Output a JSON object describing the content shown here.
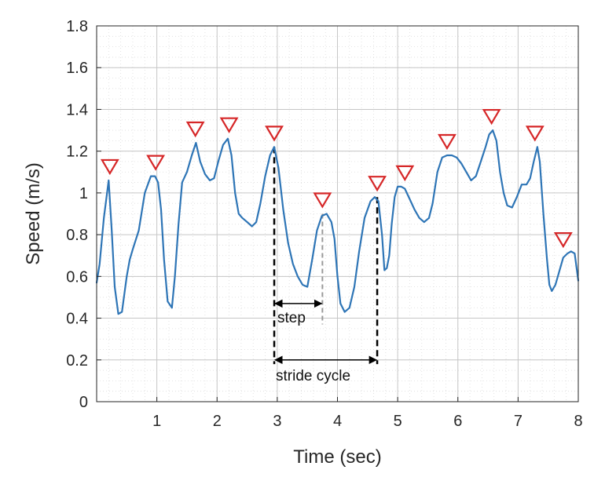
{
  "chart_data": {
    "type": "line",
    "title": "",
    "xlabel": "Time (sec)",
    "ylabel": "Speed (m/s)",
    "xlim": [
      0,
      8
    ],
    "ylim": [
      0,
      1.8
    ],
    "xticks": [
      1,
      2,
      3,
      4,
      5,
      6,
      7,
      8
    ],
    "yticks": [
      0,
      0.2,
      0.4,
      0.6,
      0.8,
      1,
      1.2,
      1.4,
      1.6,
      1.8
    ],
    "grid": true,
    "colors": {
      "line": "#2E75B6",
      "peak_marker": "#D62728",
      "annotation": "#000000",
      "step_end_line": "#999999"
    },
    "series": [
      {
        "name": "Speed",
        "x": [
          0,
          0.05,
          0.12,
          0.2,
          0.25,
          0.3,
          0.36,
          0.42,
          0.5,
          0.55,
          0.6,
          0.7,
          0.8,
          0.9,
          0.97,
          1.02,
          1.07,
          1.12,
          1.18,
          1.25,
          1.3,
          1.36,
          1.42,
          1.5,
          1.58,
          1.65,
          1.72,
          1.8,
          1.88,
          1.95,
          2.02,
          2.1,
          2.18,
          2.24,
          2.3,
          2.36,
          2.42,
          2.5,
          2.58,
          2.65,
          2.72,
          2.8,
          2.88,
          2.95,
          3.02,
          3.1,
          3.18,
          3.26,
          3.34,
          3.42,
          3.5,
          3.58,
          3.66,
          3.74,
          3.82,
          3.9,
          3.95,
          4.0,
          4.05,
          4.12,
          4.2,
          4.28,
          4.36,
          4.45,
          4.55,
          4.62,
          4.68,
          4.74,
          4.78,
          4.82,
          4.86,
          4.9,
          4.95,
          5.0,
          5.06,
          5.12,
          5.2,
          5.28,
          5.36,
          5.44,
          5.52,
          5.58,
          5.66,
          5.74,
          5.82,
          5.9,
          5.98,
          6.06,
          6.14,
          6.22,
          6.3,
          6.38,
          6.46,
          6.52,
          6.58,
          6.64,
          6.7,
          6.76,
          6.82,
          6.9,
          6.98,
          7.06,
          7.14,
          7.2,
          7.26,
          7.32,
          7.36,
          7.42,
          7.48,
          7.52,
          7.56,
          7.62,
          7.68,
          7.75,
          7.82,
          7.88,
          7.94,
          8.0
        ],
        "y": [
          0.57,
          0.66,
          0.88,
          1.06,
          0.82,
          0.55,
          0.42,
          0.43,
          0.6,
          0.68,
          0.73,
          0.82,
          1.0,
          1.08,
          1.08,
          1.05,
          0.92,
          0.68,
          0.48,
          0.45,
          0.6,
          0.85,
          1.05,
          1.1,
          1.18,
          1.24,
          1.15,
          1.09,
          1.06,
          1.07,
          1.15,
          1.23,
          1.26,
          1.18,
          1.0,
          0.9,
          0.88,
          0.86,
          0.84,
          0.86,
          0.95,
          1.08,
          1.18,
          1.22,
          1.12,
          0.92,
          0.76,
          0.66,
          0.6,
          0.56,
          0.55,
          0.68,
          0.82,
          0.89,
          0.9,
          0.86,
          0.78,
          0.6,
          0.47,
          0.43,
          0.45,
          0.55,
          0.72,
          0.88,
          0.96,
          0.98,
          0.96,
          0.8,
          0.63,
          0.64,
          0.7,
          0.85,
          0.98,
          1.03,
          1.03,
          1.02,
          0.97,
          0.92,
          0.88,
          0.86,
          0.88,
          0.95,
          1.1,
          1.17,
          1.18,
          1.18,
          1.17,
          1.14,
          1.1,
          1.06,
          1.08,
          1.15,
          1.22,
          1.28,
          1.3,
          1.25,
          1.1,
          1.0,
          0.94,
          0.93,
          0.98,
          1.04,
          1.04,
          1.07,
          1.15,
          1.22,
          1.15,
          0.9,
          0.68,
          0.56,
          0.53,
          0.56,
          0.62,
          0.69,
          0.71,
          0.72,
          0.71,
          0.58
        ]
      }
    ],
    "peaks": {
      "x": [
        0.22,
        0.98,
        1.64,
        2.2,
        2.95,
        3.75,
        4.66,
        5.12,
        5.82,
        6.56,
        7.28,
        7.75
      ],
      "y": [
        1.06,
        1.08,
        1.24,
        1.26,
        1.22,
        0.9,
        0.98,
        1.03,
        1.18,
        1.3,
        1.22,
        0.71
      ]
    },
    "annotations": {
      "step": {
        "label": "step",
        "x_start": 2.95,
        "x_end": 3.75
      },
      "stride": {
        "label": "stride cycle",
        "x_start": 2.95,
        "x_end": 4.66
      }
    }
  }
}
